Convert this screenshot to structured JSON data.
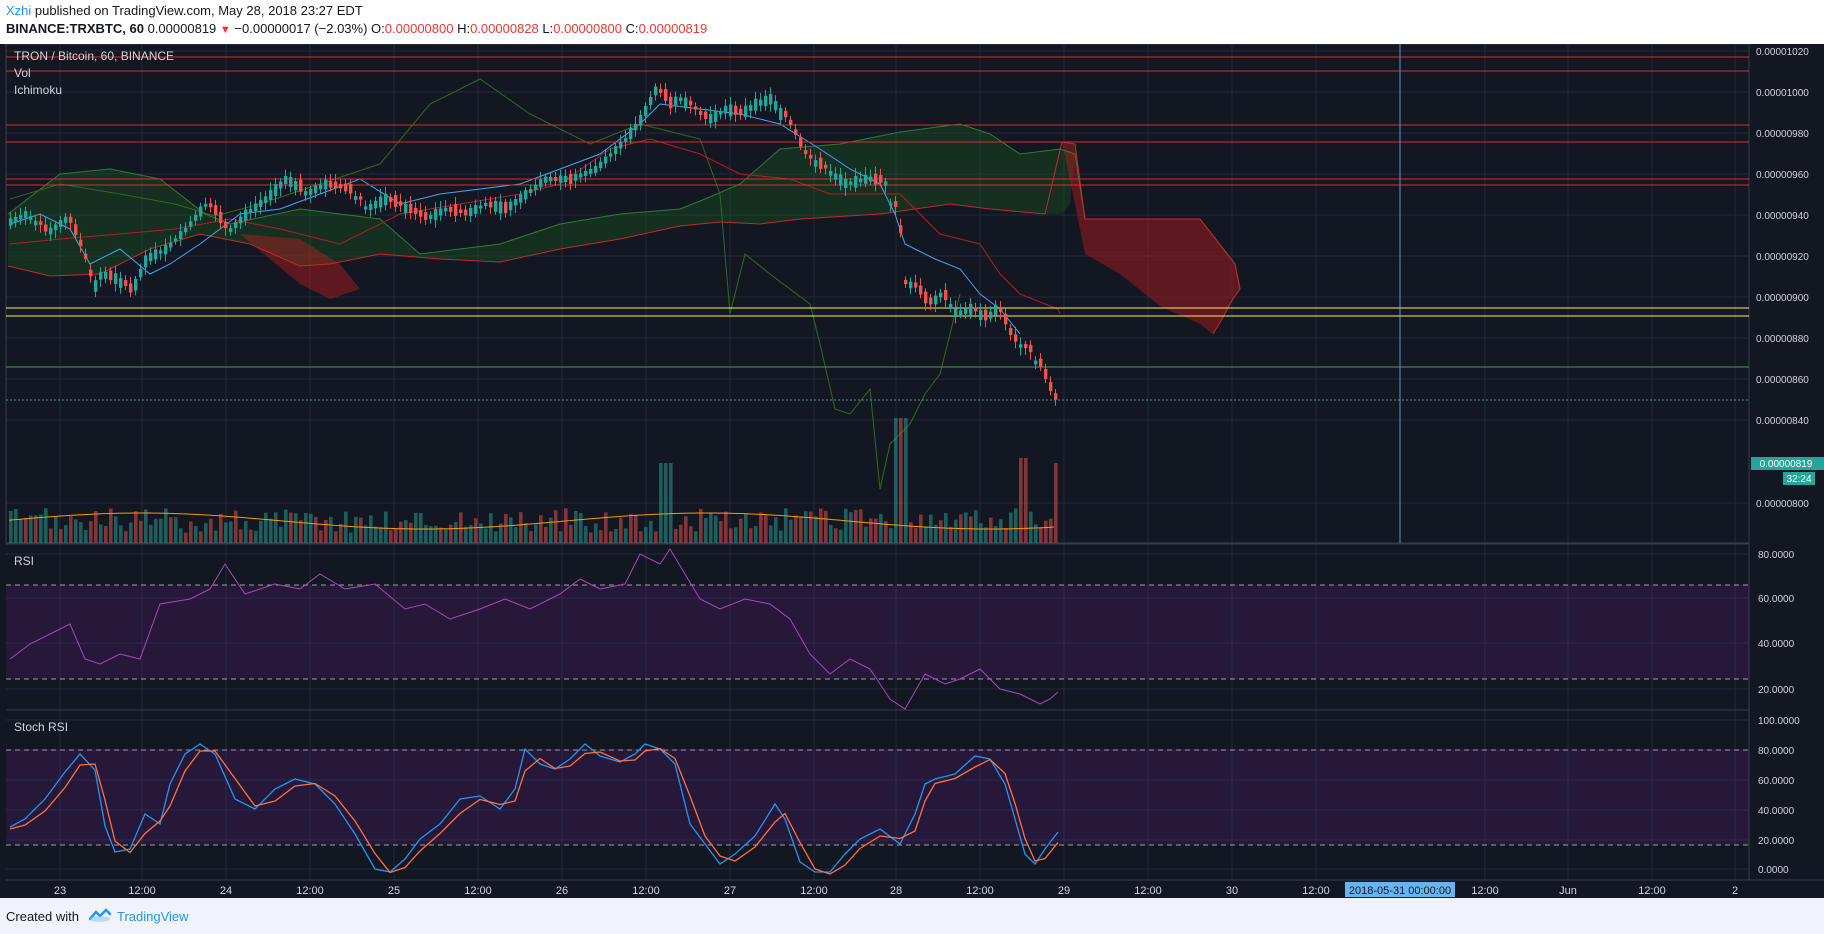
{
  "header": {
    "user": "Xzhi",
    "published": " published on TradingView.com, May 28, 2018 23:27 EDT",
    "symbol": "BINANCE:TRXBTC, 60",
    "last": "0.00000819",
    "change": "−0.00000017 (−2.03%)",
    "open_label": "O:",
    "open": "0.00000800",
    "high_label": "H:",
    "high": "0.00000828",
    "low_label": "L:",
    "low": "0.00000800",
    "close_label": "C:",
    "close": "0.00000819"
  },
  "panes": {
    "main_title": "TRON / Bitcoin, 60, BINANCE",
    "vol_label": "Vol",
    "ichimoku_label": "Ichimoku",
    "rsi_label": "RSI",
    "stoch_label": "Stoch RSI"
  },
  "price_axis": [
    "0.00001020",
    "0.00001000",
    "0.00000980",
    "0.00000960",
    "0.00000940",
    "0.00000920",
    "0.00000900",
    "0.00000880",
    "0.00000860",
    "0.00000840",
    "0.00000800"
  ],
  "last_price_tag": "0.00000819",
  "countdown_tag": "32:24",
  "rsi_axis": [
    "80.0000",
    "60.0000",
    "40.0000",
    "20.0000"
  ],
  "stoch_axis": [
    "100.0000",
    "80.0000",
    "60.0000",
    "40.0000",
    "20.0000",
    "0.0000"
  ],
  "time_axis": [
    "23",
    "12:00",
    "24",
    "12:00",
    "25",
    "12:00",
    "26",
    "12:00",
    "27",
    "12:00",
    "28",
    "12:00",
    "29",
    "12:00",
    "30",
    "12:00",
    "12:00",
    "Jun",
    "12:00",
    "2"
  ],
  "crosshair_time": "2018-05-31 00:00:00",
  "colors": {
    "background": "#131722",
    "up": "#26a69a",
    "down": "#ef5350",
    "red_level": "#d32f2f",
    "yellow_level": "#ffee58",
    "green_level": "#43a047",
    "rsi": "#ab47bc",
    "stoch_k": "#2196f3",
    "stoch_d": "#ff7043",
    "crosshair": "#64b5f6"
  },
  "footer": {
    "created": "Created with",
    "brand": "TradingView"
  }
}
